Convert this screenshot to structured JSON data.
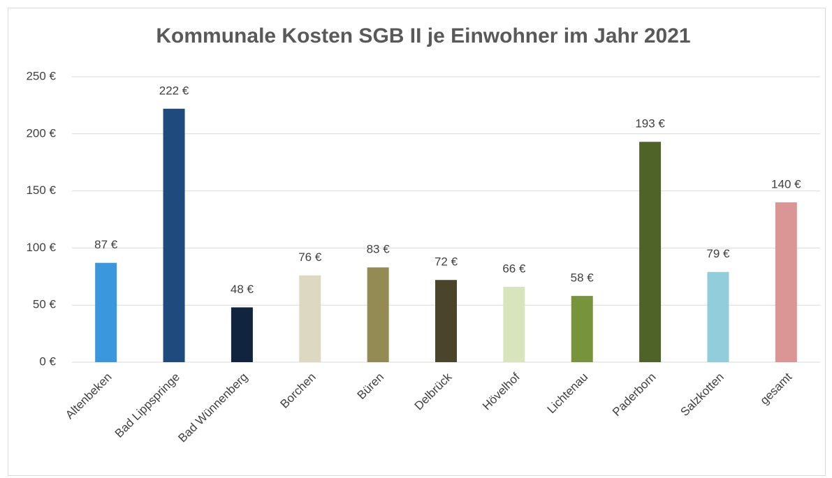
{
  "chart_data": {
    "type": "bar",
    "title": "Kommunale Kosten SGB II je Einwohner im Jahr 2021",
    "categories": [
      "Altenbeken",
      "Bad Lippspringe",
      "Bad Wünnenberg",
      "Borchen",
      "Büren",
      "Delbrück",
      "Hövelhof",
      "Lichtenau",
      "Paderborn",
      "Salzkotten",
      "gesamt"
    ],
    "values": [
      87,
      222,
      48,
      76,
      83,
      72,
      66,
      58,
      193,
      79,
      140
    ],
    "value_labels": [
      "87 €",
      "222 €",
      "48 €",
      "76 €",
      "83 €",
      "72 €",
      "66 €",
      "58 €",
      "193 €",
      "79 €",
      "140 €"
    ],
    "colors": [
      "#3a96dd",
      "#1f4a7e",
      "#10243f",
      "#ddd8c2",
      "#948a54",
      "#4a442a",
      "#d8e4bc",
      "#77933c",
      "#4f6228",
      "#92cddc",
      "#d99694"
    ],
    "ylim": [
      0,
      250
    ],
    "yticks": [
      {
        "value": 0,
        "label": "0 €"
      },
      {
        "value": 50,
        "label": "50 €"
      },
      {
        "value": 100,
        "label": "100 €"
      },
      {
        "value": 150,
        "label": "150 €"
      },
      {
        "value": 200,
        "label": "200 €"
      },
      {
        "value": 250,
        "label": "250 €"
      }
    ],
    "grid": true
  }
}
